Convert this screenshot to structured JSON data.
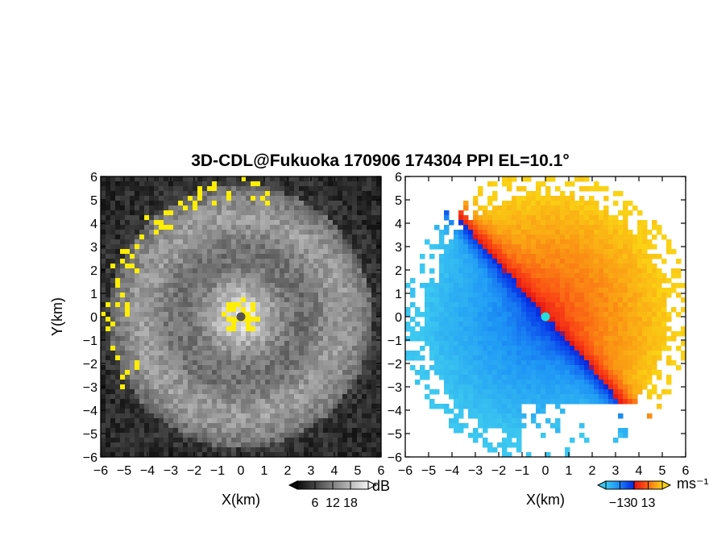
{
  "chart_data": {
    "title": "3D-CDL@Fukuoka 170906 174304 PPI EL=10.1°",
    "panels": [
      {
        "id": "reflectivity",
        "type": "heatmap",
        "xlabel": "X(km)",
        "ylabel": "Y(km)",
        "xlim": [
          -6,
          6
        ],
        "ylim": [
          -6,
          6
        ],
        "xticks": [
          "−6",
          "−5",
          "−4",
          "−3",
          "−2",
          "−1",
          "0",
          "1",
          "2",
          "3",
          "4",
          "5",
          "6"
        ],
        "yticks": [
          "6",
          "5",
          "4",
          "3",
          "2",
          "1",
          "0",
          "−1",
          "−2",
          "−3",
          "−4",
          "−5",
          "−6"
        ],
        "colormap": "grayscale",
        "saturation_color": "#ffee00",
        "colorbar": {
          "unit": "dB",
          "ticks": [
            "6",
            "12",
            "18"
          ],
          "range": [
            0,
            24
          ]
        }
      },
      {
        "id": "doppler-velocity",
        "type": "heatmap",
        "xlabel": "X(km)",
        "ylabel": "",
        "xlim": [
          -6,
          6
        ],
        "ylim": [
          -6,
          6
        ],
        "xticks": [
          "−6",
          "−5",
          "−4",
          "−3",
          "−2",
          "−1",
          "0",
          "1",
          "2",
          "3",
          "4",
          "5",
          "6"
        ],
        "yticks": [
          "6",
          "5",
          "4",
          "3",
          "2",
          "1",
          "0",
          "−1",
          "−2",
          "−3",
          "−4",
          "−5",
          "−6"
        ],
        "colormap": "cyan-blue-red-yellow",
        "colorbar": {
          "unit": "ms⁻¹",
          "ticks": [
            "−13",
            "0",
            "13"
          ],
          "range": [
            -26,
            26
          ]
        }
      }
    ]
  }
}
